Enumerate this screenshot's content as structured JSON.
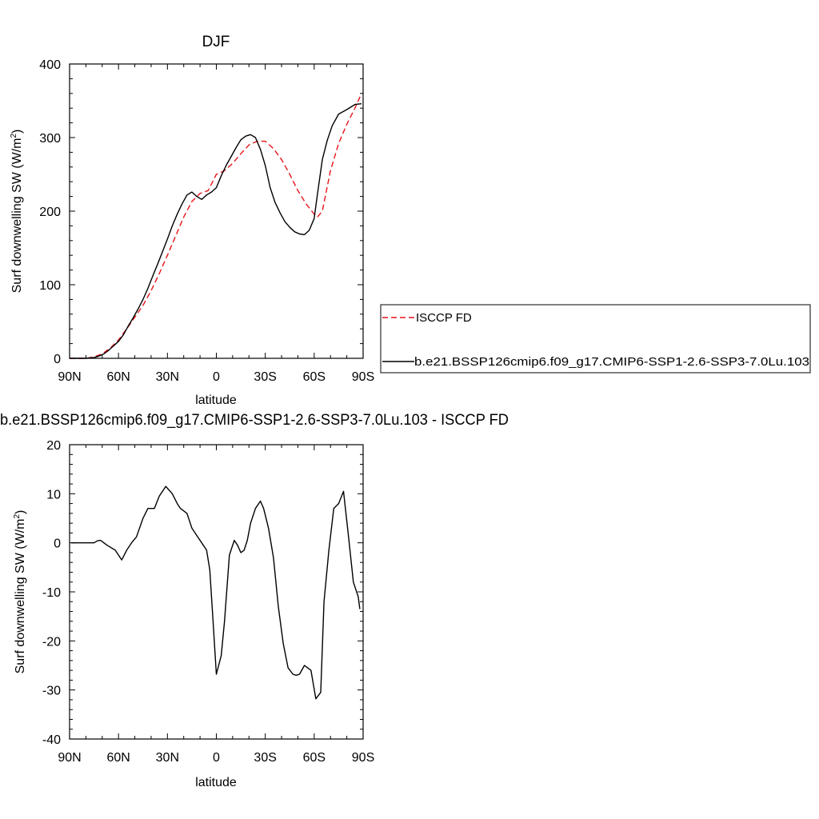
{
  "chart_data": [
    {
      "type": "line",
      "title": "DJF",
      "xlabel": "latitude",
      "ylabel": "Surf downwelling SW (W/m²)",
      "xlim": [
        90,
        -90
      ],
      "ylim": [
        0,
        400
      ],
      "x_ticks": [
        {
          "value": 90,
          "label": "90N"
        },
        {
          "value": 60,
          "label": "60N"
        },
        {
          "value": 30,
          "label": "30N"
        },
        {
          "value": 0,
          "label": "0"
        },
        {
          "value": -30,
          "label": "30S"
        },
        {
          "value": -60,
          "label": "60S"
        },
        {
          "value": -90,
          "label": "90S"
        }
      ],
      "y_ticks": [
        {
          "value": 0,
          "label": "0"
        },
        {
          "value": 100,
          "label": "100"
        },
        {
          "value": 200,
          "label": "200"
        },
        {
          "value": 300,
          "label": "300"
        },
        {
          "value": 400,
          "label": "400"
        }
      ],
      "grid": false,
      "legend": {
        "placement": "right",
        "entries": [
          "ISCCP FD",
          "b.e21.BSSP126cmip6.f09_g17.CMIP6-SSP1-2.6-SSP3-7.0Lu.103"
        ]
      },
      "series": [
        {
          "name": "ISCCP FD",
          "color": "#e8141a",
          "dash": "dashed",
          "x": [
            90,
            85,
            80,
            75,
            70,
            65,
            60,
            55,
            50,
            45,
            40,
            35,
            30,
            25,
            20,
            15,
            10,
            5,
            0,
            -5,
            -10,
            -15,
            -20,
            -25,
            -30,
            -35,
            -40,
            -45,
            -50,
            -55,
            -60,
            -62,
            -65,
            -70,
            -75,
            -80,
            -85,
            -89
          ],
          "y": [
            0,
            0,
            0,
            2,
            6,
            14,
            25,
            40,
            56,
            72,
            92,
            115,
            140,
            166,
            192,
            213,
            224,
            228,
            250,
            255,
            265,
            278,
            290,
            295,
            295,
            285,
            270,
            250,
            228,
            210,
            196,
            192,
            200,
            255,
            292,
            318,
            340,
            360
          ]
        },
        {
          "name": "b.e21.BSSP126cmip6.f09_g17.CMIP6-SSP1-2.6-SSP3-7.0Lu.103",
          "color": "#000000",
          "dash": "solid",
          "x": [
            90,
            85,
            80,
            75,
            72,
            69,
            66,
            63,
            60,
            57,
            54,
            51,
            48,
            45,
            42,
            39,
            36,
            33,
            30,
            27,
            24,
            21,
            18,
            15,
            12,
            9,
            6,
            3,
            0,
            -3,
            -6,
            -9,
            -12,
            -15,
            -18,
            -21,
            -24,
            -27,
            -30,
            -33,
            -36,
            -39,
            -42,
            -45,
            -48,
            -51,
            -54,
            -57,
            -60,
            -62,
            -65,
            -68,
            -71,
            -75,
            -80,
            -85,
            -89
          ],
          "y": [
            0,
            0,
            0,
            1,
            3,
            6,
            11,
            17,
            23,
            32,
            44,
            55,
            67,
            80,
            95,
            112,
            128,
            145,
            162,
            180,
            196,
            210,
            222,
            226,
            220,
            216,
            222,
            226,
            232,
            248,
            262,
            274,
            286,
            297,
            302,
            304,
            300,
            284,
            262,
            232,
            212,
            198,
            186,
            178,
            172,
            169,
            168,
            174,
            190,
            223,
            270,
            296,
            316,
            332,
            338,
            345,
            346
          ]
        }
      ]
    },
    {
      "type": "line",
      "title": "b.e21.BSSP126cmip6.f09_g17.CMIP6-SSP1-2.6-SSP3-7.0Lu.103 - ISCCP FD",
      "xlabel": "latitude",
      "ylabel": "Surf downwelling SW (W/m²)",
      "xlim": [
        90,
        -90
      ],
      "ylim": [
        -40,
        20
      ],
      "x_ticks": [
        {
          "value": 90,
          "label": "90N"
        },
        {
          "value": 60,
          "label": "60N"
        },
        {
          "value": 30,
          "label": "30N"
        },
        {
          "value": 0,
          "label": "0"
        },
        {
          "value": -30,
          "label": "30S"
        },
        {
          "value": -60,
          "label": "60S"
        },
        {
          "value": -90,
          "label": "90S"
        }
      ],
      "y_ticks": [
        {
          "value": -40,
          "label": "-40"
        },
        {
          "value": -30,
          "label": "-30"
        },
        {
          "value": -20,
          "label": "-20"
        },
        {
          "value": -10,
          "label": "-10"
        },
        {
          "value": 0,
          "label": "0"
        },
        {
          "value": 10,
          "label": "10"
        },
        {
          "value": 20,
          "label": "20"
        }
      ],
      "grid": false,
      "series": [
        {
          "color": "#000000",
          "dash": "solid",
          "x": [
            89,
            80,
            75,
            73,
            71,
            67,
            62,
            58,
            55,
            52,
            49,
            45,
            42,
            38,
            35,
            31,
            27,
            24,
            22,
            18,
            15,
            12,
            9,
            6,
            4,
            2,
            0,
            -3,
            -5,
            -8,
            -11,
            -13,
            -15,
            -17,
            -19,
            -21,
            -24,
            -27,
            -29,
            -32,
            -35,
            -38,
            -41,
            -44,
            -47,
            -49,
            -51,
            -54,
            -56,
            -58,
            -61,
            -64,
            -66,
            -69,
            -72,
            -75,
            -78,
            -81,
            -84,
            -87,
            -88
          ],
          "y": [
            0,
            0,
            0,
            0.4,
            0.5,
            -0.5,
            -1.5,
            -3.5,
            -1.5,
            0,
            1.2,
            5,
            7,
            7,
            9.5,
            11.5,
            10,
            8,
            7,
            6,
            3,
            1.5,
            0,
            -1.5,
            -5.5,
            -16,
            -26.8,
            -23,
            -16,
            -2.5,
            0.5,
            -0.5,
            -2,
            -1.5,
            0.5,
            4,
            7,
            8.5,
            7,
            3,
            -3,
            -13,
            -20.5,
            -25.5,
            -26.8,
            -27,
            -26.8,
            -25,
            -25.5,
            -26,
            -31.8,
            -30.5,
            -12,
            -1.5,
            7,
            8,
            10.5,
            1.5,
            -8,
            -11,
            -13.5
          ]
        }
      ]
    }
  ]
}
